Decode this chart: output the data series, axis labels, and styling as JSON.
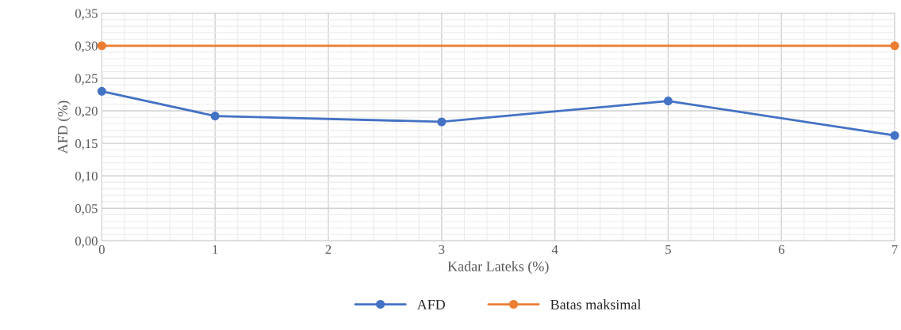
{
  "chart_data": {
    "type": "line",
    "xlabel": "Kadar Lateks (%)",
    "ylabel": "AFD (%)",
    "xlim": [
      0,
      7
    ],
    "xticks": [
      0,
      1,
      2,
      3,
      4,
      5,
      6,
      7
    ],
    "ylim": [
      0,
      0.35
    ],
    "yticks": [
      {
        "value": 0,
        "label": "0,00"
      },
      {
        "value": 0.05,
        "label": "0,05"
      },
      {
        "value": 0.1,
        "label": "0,10"
      },
      {
        "value": 0.15,
        "label": "0,15"
      },
      {
        "value": 0.2,
        "label": "0,20"
      },
      {
        "value": 0.25,
        "label": "0,25"
      },
      {
        "value": 0.3,
        "label": "0,30"
      },
      {
        "value": 0.35,
        "label": "0,35"
      }
    ],
    "series": [
      {
        "name": "AFD",
        "color": "#4472c4",
        "x": [
          0,
          1,
          3,
          5,
          7
        ],
        "values": [
          0.23,
          0.192,
          0.183,
          0.215,
          0.162
        ]
      },
      {
        "name": "Batas maksimal",
        "color": "#ed7d31",
        "x": [
          0,
          7
        ],
        "values": [
          0.3,
          0.3
        ]
      }
    ],
    "marker": "circle",
    "line_style": "solid",
    "grid": true,
    "legend": "bottom"
  }
}
